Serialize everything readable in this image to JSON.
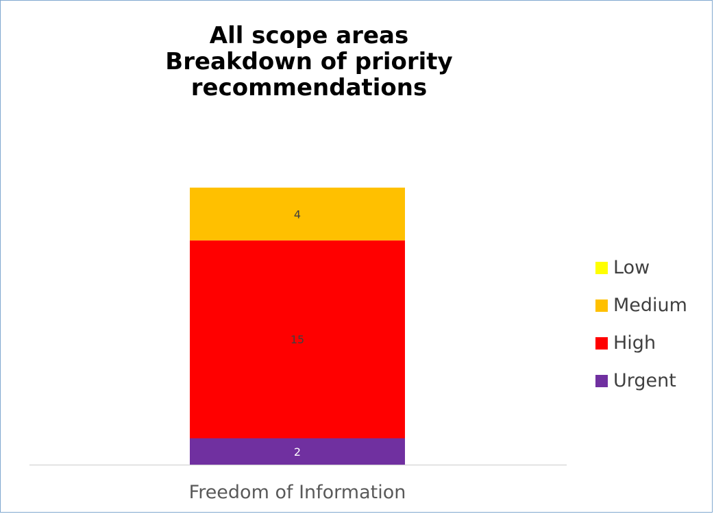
{
  "chart_data": {
    "type": "bar",
    "stacked": true,
    "title_lines": [
      "All scope areas",
      "Breakdown of priority",
      "recommendations"
    ],
    "categories": [
      "Freedom of Information"
    ],
    "series": [
      {
        "name": "Urgent",
        "values": [
          2
        ],
        "color": "#7030a0",
        "label_color": "#ffffff"
      },
      {
        "name": "High",
        "values": [
          15
        ],
        "color": "#ff0000",
        "label_color": "#404040"
      },
      {
        "name": "Medium",
        "values": [
          4
        ],
        "color": "#ffc000",
        "label_color": "#404040"
      },
      {
        "name": "Low",
        "values": [
          0
        ],
        "color": "#ffff00",
        "label_color": "#404040"
      }
    ],
    "legend_order": [
      "Low",
      "Medium",
      "High",
      "Urgent"
    ],
    "legend_position": "right",
    "grid": false,
    "y_axis_visible": false
  }
}
